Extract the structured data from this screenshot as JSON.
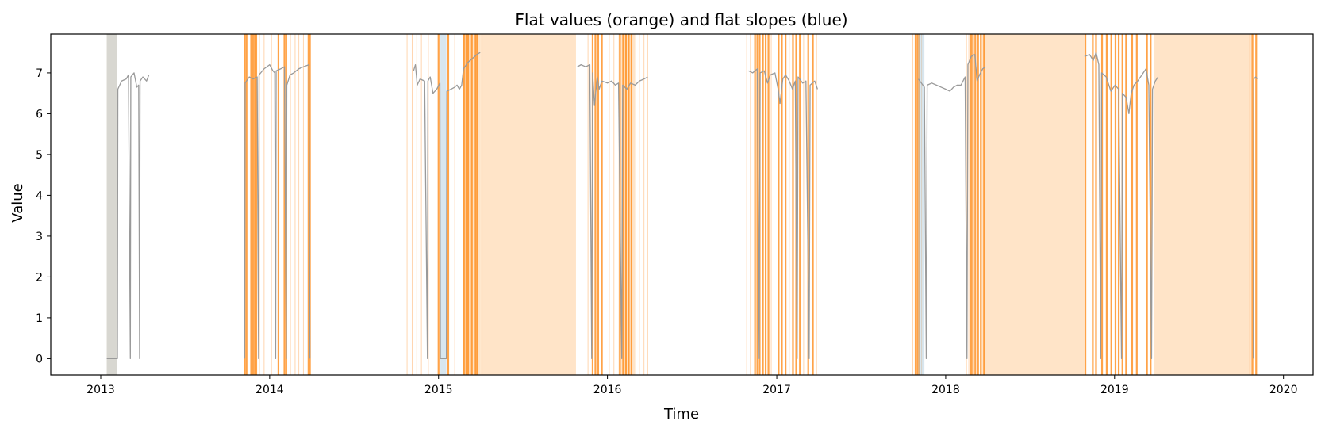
{
  "chart_data": {
    "type": "line",
    "title": "Flat values (orange) and flat slopes (blue)",
    "xlabel": "Time",
    "ylabel": "Value",
    "xlim": [
      "2012-09-15",
      "2020-03-05"
    ],
    "ylim": [
      -0.4,
      7.95
    ],
    "x_ticks": [
      "2013",
      "2014",
      "2015",
      "2016",
      "2017",
      "2018",
      "2019",
      "2020"
    ],
    "y_ticks": [
      "0",
      "1",
      "2",
      "3",
      "4",
      "5",
      "6",
      "7"
    ],
    "grid": false,
    "legend": "none",
    "colors": {
      "series": "#9a9a9a",
      "flat_value_light": "#ffe4c8",
      "flat_value_dark": "#ff8c1a",
      "flat_slope": "#a8c7dc"
    },
    "flat_slope_spans": [
      [
        "2013-01-14",
        "2013-02-06"
      ],
      [
        "2015-01-05",
        "2015-01-18"
      ],
      [
        "2017-11-03",
        "2017-11-16"
      ]
    ],
    "flat_value_spans": [
      [
        "2013-01-14",
        "2013-02-06"
      ],
      [
        "2015-02-22",
        "2015-04-01"
      ],
      [
        "2015-04-01",
        "2015-10-25"
      ],
      [
        "2016-01-25",
        "2016-03-01"
      ],
      [
        "2018-03-20",
        "2018-10-28"
      ],
      [
        "2019-03-28",
        "2019-10-25"
      ]
    ],
    "flat_value_lines_dark": [
      "2013-11-08",
      "2013-11-12",
      "2013-11-22",
      "2013-11-26",
      "2013-11-30",
      "2013-12-03",
      "2014-01-20",
      "2014-02-02",
      "2014-02-06",
      "2014-03-26",
      "2014-03-29",
      "2015-01-01",
      "2015-01-22",
      "2015-02-25",
      "2015-03-02",
      "2015-03-06",
      "2015-03-14",
      "2015-03-22",
      "2015-03-26",
      "2015-11-30",
      "2015-12-06",
      "2015-12-12",
      "2015-12-20",
      "2016-01-28",
      "2016-02-04",
      "2016-02-10",
      "2016-02-16",
      "2016-02-22",
      "2016-11-15",
      "2016-11-20",
      "2016-11-25",
      "2016-12-02",
      "2016-12-08",
      "2016-12-14",
      "2017-01-05",
      "2017-01-12",
      "2017-01-20",
      "2017-02-05",
      "2017-02-12",
      "2017-02-20",
      "2017-03-10",
      "2017-03-20",
      "2017-10-28",
      "2017-11-01",
      "2017-11-05",
      "2018-02-25",
      "2018-03-01",
      "2018-03-06",
      "2018-03-12",
      "2018-03-18",
      "2018-03-25",
      "2018-10-30",
      "2018-11-15",
      "2018-11-22",
      "2018-12-05",
      "2018-12-15",
      "2018-12-25",
      "2019-01-03",
      "2019-01-10",
      "2019-01-18",
      "2019-01-26",
      "2019-02-08",
      "2019-02-18",
      "2019-03-12",
      "2019-03-20",
      "2019-10-26",
      "2019-11-03"
    ],
    "flat_value_lines_light": [
      "2013-11-15",
      "2013-12-10",
      "2013-12-20",
      "2014-01-05",
      "2014-02-15",
      "2014-02-25",
      "2014-03-05",
      "2014-03-15",
      "2014-10-25",
      "2014-11-05",
      "2014-11-15",
      "2014-11-25",
      "2014-12-10",
      "2015-02-05",
      "2015-04-05",
      "2015-11-20",
      "2016-01-05",
      "2016-01-15",
      "2016-03-10",
      "2016-03-20",
      "2016-03-28",
      "2016-10-28",
      "2016-11-05",
      "2016-12-20",
      "2017-01-28",
      "2017-02-28",
      "2017-03-28",
      "2017-10-22",
      "2017-11-10",
      "2018-02-15",
      "2018-02-20",
      "2019-10-20"
    ],
    "series": [
      {
        "segments": [
          [
            [
              "2013-01-14",
              0.0
            ],
            [
              "2013-02-06",
              0.0
            ],
            [
              "2013-02-07",
              6.6
            ],
            [
              "2013-02-15",
              6.8
            ],
            [
              "2013-02-25",
              6.85
            ],
            [
              "2013-03-02",
              6.95
            ],
            [
              "2013-03-06",
              0.0
            ],
            [
              "2013-03-07",
              6.9
            ],
            [
              "2013-03-14",
              7.0
            ],
            [
              "2013-03-20",
              6.65
            ],
            [
              "2013-03-24",
              6.7
            ],
            [
              "2013-03-26",
              0.0
            ],
            [
              "2013-03-27",
              6.8
            ],
            [
              "2013-04-02",
              6.9
            ],
            [
              "2013-04-10",
              6.8
            ],
            [
              "2013-04-15",
              6.95
            ]
          ],
          [
            [
              "2013-11-08",
              0.0
            ],
            [
              "2013-11-09",
              6.75
            ],
            [
              "2013-11-18",
              6.9
            ],
            [
              "2013-11-26",
              6.85
            ],
            [
              "2013-12-05",
              6.9
            ],
            [
              "2013-12-08",
              0.0
            ],
            [
              "2013-12-09",
              6.95
            ],
            [
              "2013-12-20",
              7.1
            ],
            [
              "2014-01-01",
              7.2
            ],
            [
              "2014-01-08",
              7.05
            ],
            [
              "2014-01-12",
              7.0
            ],
            [
              "2014-01-14",
              0.0
            ],
            [
              "2014-01-15",
              7.05
            ],
            [
              "2014-01-25",
              7.1
            ],
            [
              "2014-02-02",
              7.15
            ],
            [
              "2014-02-06",
              0.0
            ],
            [
              "2014-02-07",
              6.7
            ],
            [
              "2014-02-14",
              6.95
            ],
            [
              "2014-02-22",
              7.0
            ],
            [
              "2014-03-05",
              7.1
            ],
            [
              "2014-03-15",
              7.15
            ],
            [
              "2014-03-27",
              7.2
            ],
            [
              "2014-03-29",
              0.0
            ]
          ],
          [
            [
              "2014-11-08",
              7.05
            ],
            [
              "2014-11-12",
              7.2
            ],
            [
              "2014-11-16",
              6.7
            ],
            [
              "2014-11-22",
              6.85
            ],
            [
              "2014-12-02",
              6.8
            ],
            [
              "2014-12-08",
              0.0
            ],
            [
              "2014-12-09",
              6.8
            ],
            [
              "2014-12-14",
              6.9
            ],
            [
              "2014-12-20",
              6.5
            ],
            [
              "2014-12-28",
              6.6
            ],
            [
              "2015-01-04",
              6.75
            ],
            [
              "2015-01-05",
              0.0
            ],
            [
              "2015-01-18",
              0.0
            ],
            [
              "2015-01-19",
              6.55
            ],
            [
              "2015-01-28",
              6.6
            ],
            [
              "2015-02-05",
              6.65
            ],
            [
              "2015-02-10",
              6.7
            ],
            [
              "2015-02-15",
              6.6
            ],
            [
              "2015-02-20",
              6.7
            ],
            [
              "2015-02-24",
              7.1
            ],
            [
              "2015-03-05",
              7.25
            ],
            [
              "2015-03-15",
              7.35
            ],
            [
              "2015-03-25",
              7.45
            ],
            [
              "2015-04-01",
              7.5
            ]
          ],
          [
            [
              "2015-10-28",
              7.15
            ],
            [
              "2015-11-05",
              7.2
            ],
            [
              "2015-11-15",
              7.15
            ],
            [
              "2015-11-24",
              7.2
            ],
            [
              "2015-11-28",
              0.0
            ],
            [
              "2015-11-30",
              7.0
            ],
            [
              "2015-12-04",
              6.2
            ],
            [
              "2015-12-10",
              6.9
            ],
            [
              "2015-12-14",
              6.6
            ],
            [
              "2015-12-20",
              6.8
            ],
            [
              "2016-01-01",
              6.75
            ],
            [
              "2016-01-10",
              6.8
            ],
            [
              "2016-01-18",
              6.7
            ],
            [
              "2016-01-25",
              6.75
            ],
            [
              "2016-02-01",
              0.0
            ],
            [
              "2016-02-03",
              6.7
            ],
            [
              "2016-02-12",
              6.6
            ],
            [
              "2016-02-20",
              6.75
            ],
            [
              "2016-03-01",
              6.7
            ],
            [
              "2016-03-10",
              6.8
            ],
            [
              "2016-03-20",
              6.85
            ],
            [
              "2016-03-28",
              6.9
            ]
          ],
          [
            [
              "2016-11-01",
              7.05
            ],
            [
              "2016-11-10",
              7.0
            ],
            [
              "2016-11-20",
              7.1
            ],
            [
              "2016-11-24",
              0.0
            ],
            [
              "2016-11-26",
              7.0
            ],
            [
              "2016-12-05",
              7.05
            ],
            [
              "2016-12-12",
              6.75
            ],
            [
              "2016-12-18",
              6.95
            ],
            [
              "2016-12-28",
              7.0
            ],
            [
              "2017-01-04",
              6.6
            ],
            [
              "2017-01-08",
              6.25
            ],
            [
              "2017-01-14",
              6.85
            ],
            [
              "2017-01-20",
              6.95
            ],
            [
              "2017-01-28",
              6.8
            ],
            [
              "2017-02-04",
              6.6
            ],
            [
              "2017-02-10",
              6.8
            ],
            [
              "2017-02-14",
              0.0
            ],
            [
              "2017-02-16",
              6.9
            ],
            [
              "2017-02-26",
              6.75
            ],
            [
              "2017-03-05",
              6.8
            ],
            [
              "2017-03-12",
              0.0
            ],
            [
              "2017-03-14",
              6.7
            ],
            [
              "2017-03-24",
              6.8
            ],
            [
              "2017-03-30",
              6.6
            ]
          ],
          [
            [
              "2017-11-03",
              6.85
            ],
            [
              "2017-11-16",
              6.65
            ],
            [
              "2017-11-20",
              0.0
            ],
            [
              "2017-11-22",
              6.7
            ],
            [
              "2017-12-02",
              6.75
            ],
            [
              "2017-12-12",
              6.7
            ],
            [
              "2017-12-22",
              6.65
            ],
            [
              "2018-01-01",
              6.6
            ],
            [
              "2018-01-10",
              6.55
            ],
            [
              "2018-01-18",
              6.65
            ],
            [
              "2018-01-26",
              6.7
            ],
            [
              "2018-02-03",
              6.7
            ],
            [
              "2018-02-12",
              6.9
            ],
            [
              "2018-02-16",
              0.0
            ],
            [
              "2018-02-18",
              7.2
            ],
            [
              "2018-02-25",
              7.4
            ],
            [
              "2018-03-05",
              7.45
            ],
            [
              "2018-03-10",
              6.8
            ],
            [
              "2018-03-15",
              6.95
            ],
            [
              "2018-03-22",
              7.1
            ],
            [
              "2018-03-28",
              7.15
            ]
          ],
          [
            [
              "2018-10-28",
              7.4
            ],
            [
              "2018-11-08",
              7.45
            ],
            [
              "2018-11-16",
              7.3
            ],
            [
              "2018-11-22",
              7.5
            ],
            [
              "2018-11-28",
              7.2
            ],
            [
              "2018-12-02",
              0.0
            ],
            [
              "2018-12-04",
              7.0
            ],
            [
              "2018-12-14",
              6.9
            ],
            [
              "2018-12-24",
              6.55
            ],
            [
              "2019-01-02",
              6.7
            ],
            [
              "2019-01-10",
              6.6
            ],
            [
              "2019-01-16",
              0.0
            ],
            [
              "2019-01-18",
              6.5
            ],
            [
              "2019-01-26",
              6.4
            ],
            [
              "2019-02-01",
              6.0
            ],
            [
              "2019-02-06",
              6.5
            ],
            [
              "2019-02-12",
              6.7
            ],
            [
              "2019-02-20",
              6.8
            ],
            [
              "2019-03-01",
              6.95
            ],
            [
              "2019-03-10",
              7.1
            ],
            [
              "2019-03-16",
              6.7
            ],
            [
              "2019-03-22",
              0.0
            ],
            [
              "2019-03-24",
              6.6
            ],
            [
              "2019-03-30",
              6.8
            ],
            [
              "2019-04-05",
              6.9
            ]
          ],
          [
            [
              "2019-10-28",
              0.0
            ],
            [
              "2019-10-29",
              6.85
            ],
            [
              "2019-11-02",
              6.9
            ],
            [
              "2019-11-05",
              6.85
            ]
          ]
        ]
      }
    ]
  }
}
